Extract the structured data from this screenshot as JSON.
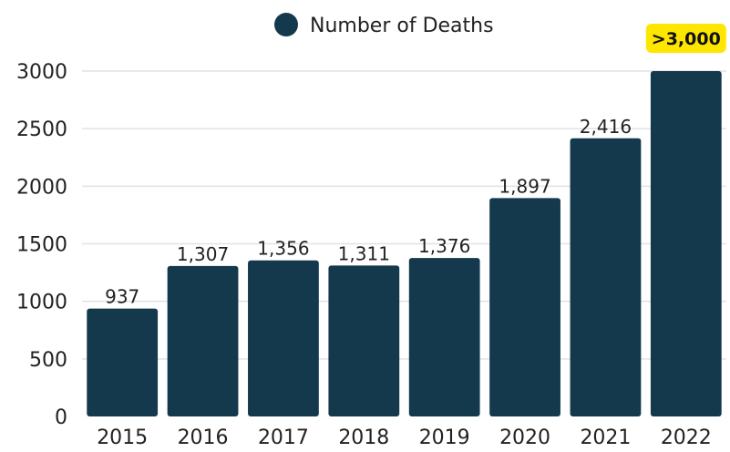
{
  "chart_data": {
    "type": "bar",
    "title": "",
    "xlabel": "",
    "ylabel": "",
    "categories": [
      "2015",
      "2016",
      "2017",
      "2018",
      "2019",
      "2020",
      "2021",
      "2022"
    ],
    "series": [
      {
        "name": "Number of Deaths",
        "values": [
          937,
          1307,
          1356,
          1311,
          1376,
          1897,
          2416,
          3000
        ],
        "data_labels": [
          "937",
          "1,307",
          "1,356",
          "1,311",
          "1,376",
          "1,897",
          "2,416",
          ">3,000"
        ],
        "highlighted_index": 7
      }
    ],
    "ylim": [
      0,
      3000
    ],
    "yticks": [
      0,
      500,
      1000,
      1500,
      2000,
      2500,
      3000
    ],
    "ytick_labels": [
      "0",
      "500",
      "1000",
      "1500",
      "2000",
      "2500",
      "3000"
    ],
    "grid": "horizontal",
    "legend_position": "top-center",
    "colors": {
      "bar": "#14384c",
      "grid": "#e2e2e2",
      "highlight_badge": "#ffe600"
    }
  }
}
